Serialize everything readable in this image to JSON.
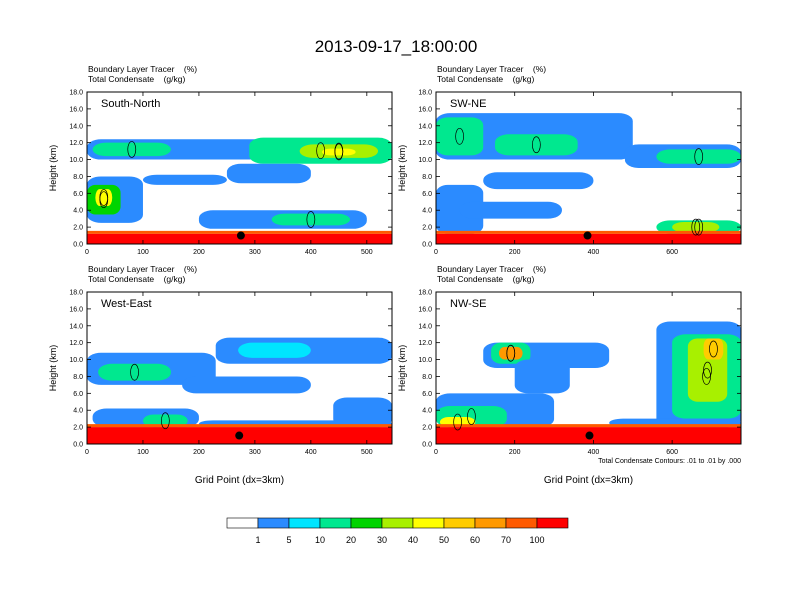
{
  "title": "2013-09-17_18:00:00",
  "chart_data": [
    {
      "type": "heatmap",
      "panel_label": "South-North",
      "subtitle_lines": [
        "Boundary Layer Tracer    (%)",
        "Total Condensate    (g/kg)"
      ],
      "ylabel": "Height (km)",
      "xlabel": "",
      "xlim": [
        0,
        545
      ],
      "ylim": [
        0,
        18
      ],
      "xticks": [
        0,
        100,
        200,
        300,
        400,
        500
      ],
      "yticks": [
        "0.0",
        "2.0",
        "4.0",
        "6.0",
        "8.0",
        "10.0",
        "12.0",
        "14.0",
        "16.0",
        "18.0"
      ],
      "surface_band_top_km": 1.2,
      "marker": {
        "x": 275,
        "y": 1.0
      },
      "tracer_patches": [
        {
          "x0": 0,
          "x1": 545,
          "y0": 10.0,
          "y1": 12.4,
          "level": 1
        },
        {
          "x0": 10,
          "x1": 150,
          "y0": 10.4,
          "y1": 12.0,
          "level": 3
        },
        {
          "x0": 290,
          "x1": 545,
          "y0": 9.5,
          "y1": 12.6,
          "level": 3
        },
        {
          "x0": 380,
          "x1": 520,
          "y0": 10.2,
          "y1": 11.8,
          "level": 5
        },
        {
          "x0": 420,
          "x1": 480,
          "y0": 10.5,
          "y1": 11.3,
          "level": 6
        },
        {
          "x0": 0,
          "x1": 100,
          "y0": 2.5,
          "y1": 8.0,
          "level": 1
        },
        {
          "x0": 0,
          "x1": 60,
          "y0": 3.5,
          "y1": 7.0,
          "level": 4
        },
        {
          "x0": 15,
          "x1": 45,
          "y0": 4.5,
          "y1": 6.5,
          "level": 6
        },
        {
          "x0": 100,
          "x1": 250,
          "y0": 7.0,
          "y1": 8.2,
          "level": 1
        },
        {
          "x0": 200,
          "x1": 500,
          "y0": 1.8,
          "y1": 4.0,
          "level": 1
        },
        {
          "x0": 330,
          "x1": 470,
          "y0": 2.2,
          "y1": 3.6,
          "level": 3
        },
        {
          "x0": 250,
          "x1": 400,
          "y0": 7.2,
          "y1": 9.5,
          "level": 1
        }
      ]
    },
    {
      "type": "heatmap",
      "panel_label": "SW-NE",
      "subtitle_lines": [
        "Boundary Layer Tracer    (%)",
        "Total Condensate    (g/kg)"
      ],
      "ylabel": "Height (km)",
      "xlabel": "",
      "xlim": [
        0,
        775
      ],
      "ylim": [
        0,
        18
      ],
      "xticks": [
        0,
        200,
        400,
        600
      ],
      "yticks": [
        "0.0",
        "2.0",
        "4.0",
        "6.0",
        "8.0",
        "10.0",
        "12.0",
        "14.0",
        "16.0",
        "18.0"
      ],
      "surface_band_top_km": 1.2,
      "marker": {
        "x": 385,
        "y": 1.0
      },
      "tracer_patches": [
        {
          "x0": 0,
          "x1": 500,
          "y0": 10.0,
          "y1": 15.5,
          "level": 1
        },
        {
          "x0": 0,
          "x1": 120,
          "y0": 10.5,
          "y1": 15.0,
          "level": 3
        },
        {
          "x0": 150,
          "x1": 360,
          "y0": 10.5,
          "y1": 13.0,
          "level": 3
        },
        {
          "x0": 480,
          "x1": 775,
          "y0": 9.0,
          "y1": 11.8,
          "level": 1
        },
        {
          "x0": 560,
          "x1": 775,
          "y0": 9.5,
          "y1": 11.2,
          "level": 3
        },
        {
          "x0": 0,
          "x1": 120,
          "y0": 1.2,
          "y1": 7.0,
          "level": 1
        },
        {
          "x0": 120,
          "x1": 400,
          "y0": 6.5,
          "y1": 8.5,
          "level": 1
        },
        {
          "x0": 60,
          "x1": 320,
          "y0": 3.0,
          "y1": 5.0,
          "level": 1
        },
        {
          "x0": 560,
          "x1": 775,
          "y0": 1.2,
          "y1": 2.8,
          "level": 3
        },
        {
          "x0": 600,
          "x1": 720,
          "y0": 1.4,
          "y1": 2.6,
          "level": 5
        }
      ]
    },
    {
      "type": "heatmap",
      "panel_label": "West-East",
      "subtitle_lines": [
        "Boundary Layer Tracer    (%)",
        "Total Condensate    (g/kg)"
      ],
      "ylabel": "Height (km)",
      "xlabel": "Grid Point (dx=3km)",
      "xlim": [
        0,
        545
      ],
      "ylim": [
        0,
        18
      ],
      "xticks": [
        0,
        100,
        200,
        300,
        400,
        500
      ],
      "yticks": [
        "0.0",
        "2.0",
        "4.0",
        "6.0",
        "8.0",
        "10.0",
        "12.0",
        "14.0",
        "16.0",
        "18.0"
      ],
      "surface_band_top_km": 2.0,
      "marker": {
        "x": 272,
        "y": 1.0
      },
      "tracer_patches": [
        {
          "x0": 0,
          "x1": 230,
          "y0": 7.0,
          "y1": 10.8,
          "level": 1
        },
        {
          "x0": 230,
          "x1": 545,
          "y0": 9.5,
          "y1": 12.6,
          "level": 1
        },
        {
          "x0": 270,
          "x1": 400,
          "y0": 10.2,
          "y1": 12.0,
          "level": 2
        },
        {
          "x0": 20,
          "x1": 150,
          "y0": 7.5,
          "y1": 9.5,
          "level": 3
        },
        {
          "x0": 170,
          "x1": 400,
          "y0": 6.0,
          "y1": 8.0,
          "level": 1
        },
        {
          "x0": 10,
          "x1": 200,
          "y0": 2.0,
          "y1": 4.2,
          "level": 1
        },
        {
          "x0": 100,
          "x1": 180,
          "y0": 2.0,
          "y1": 3.5,
          "level": 3
        },
        {
          "x0": 200,
          "x1": 545,
          "y0": 2.0,
          "y1": 2.8,
          "level": 1
        },
        {
          "x0": 440,
          "x1": 545,
          "y0": 2.0,
          "y1": 5.5,
          "level": 1
        }
      ]
    },
    {
      "type": "heatmap",
      "panel_label": "NW-SE",
      "subtitle_lines": [
        "Boundary Layer Tracer    (%)",
        "Total Condensate    (g/kg)"
      ],
      "ylabel": "Height (km)",
      "xlabel": "Grid Point (dx=3km)",
      "xlim": [
        0,
        775
      ],
      "ylim": [
        0,
        18
      ],
      "xticks": [
        0,
        200,
        400,
        600
      ],
      "yticks": [
        "0.0",
        "2.0",
        "4.0",
        "6.0",
        "8.0",
        "10.0",
        "12.0",
        "14.0",
        "16.0",
        "18.0"
      ],
      "surface_band_top_km": 2.0,
      "marker": {
        "x": 390,
        "y": 1.0
      },
      "note": "Total Condensate Contours: .01 to .01 by .000",
      "tracer_patches": [
        {
          "x0": 0,
          "x1": 300,
          "y0": 2.0,
          "y1": 6.0,
          "level": 1
        },
        {
          "x0": 0,
          "x1": 180,
          "y0": 2.0,
          "y1": 4.5,
          "level": 3
        },
        {
          "x0": 10,
          "x1": 100,
          "y0": 2.0,
          "y1": 3.2,
          "level": 6
        },
        {
          "x0": 120,
          "x1": 440,
          "y0": 9.0,
          "y1": 12.0,
          "level": 1
        },
        {
          "x0": 140,
          "x1": 240,
          "y0": 9.5,
          "y1": 12.0,
          "level": 3
        },
        {
          "x0": 160,
          "x1": 220,
          "y0": 10.0,
          "y1": 11.5,
          "level": 8
        },
        {
          "x0": 200,
          "x1": 340,
          "y0": 6.0,
          "y1": 10.0,
          "level": 1
        },
        {
          "x0": 560,
          "x1": 775,
          "y0": 2.0,
          "y1": 14.5,
          "level": 1
        },
        {
          "x0": 600,
          "x1": 775,
          "y0": 3.0,
          "y1": 13.0,
          "level": 3
        },
        {
          "x0": 640,
          "x1": 740,
          "y0": 5.0,
          "y1": 12.5,
          "level": 5
        },
        {
          "x0": 680,
          "x1": 730,
          "y0": 10.0,
          "y1": 12.5,
          "level": 7
        },
        {
          "x0": 440,
          "x1": 775,
          "y0": 2.0,
          "y1": 3.0,
          "level": 1
        }
      ]
    }
  ],
  "colorbar": {
    "labels": [
      "1",
      "5",
      "10",
      "20",
      "30",
      "40",
      "50",
      "60",
      "70",
      "100"
    ],
    "colors": [
      "#ffffff",
      "#2b8bff",
      "#00e5ff",
      "#00e88f",
      "#00d400",
      "#a8f000",
      "#ffff00",
      "#ffcc00",
      "#ff9900",
      "#ff5a00",
      "#ff0000"
    ]
  },
  "colors": {
    "surface_band": "#ff0000",
    "contour": "#000000"
  }
}
